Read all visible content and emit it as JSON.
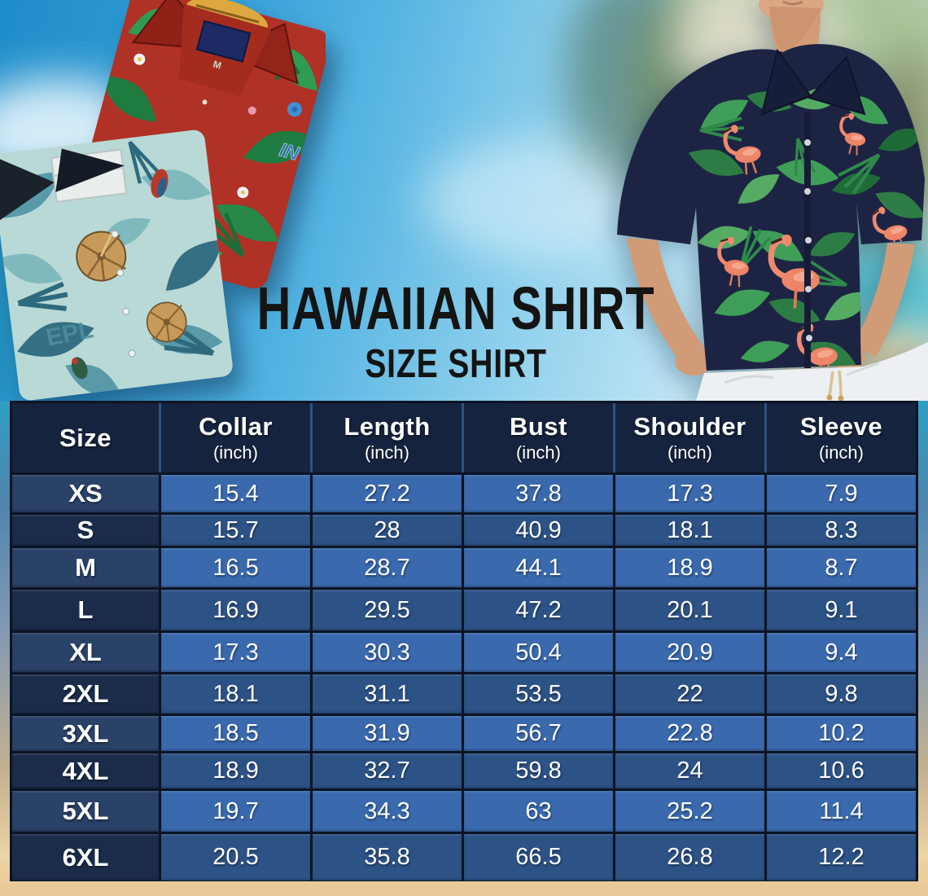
{
  "title": "HAWAIIAN SHIRT",
  "subtitle": "SIZE SHIRT",
  "hero": {
    "left_image": "two-folded-hawaiian-shirts",
    "right_image": "man-wearing-navy-flamingo-hawaiian-shirt",
    "red_shirt_size_tag": "M",
    "red_shirt_logo_text": "IN",
    "teal_shirt_text": "EPL"
  },
  "table": {
    "columns": [
      {
        "label": "Size",
        "sub": ""
      },
      {
        "label": "Collar",
        "sub": "(inch)"
      },
      {
        "label": "Length",
        "sub": "(inch)"
      },
      {
        "label": "Bust",
        "sub": "(inch)"
      },
      {
        "label": "Shoulder",
        "sub": "(inch)"
      },
      {
        "label": "Sleeve",
        "sub": "(inch)"
      }
    ],
    "rows": [
      {
        "size": "XS",
        "values": [
          "15.4",
          "27.2",
          "37.8",
          "17.3",
          "7.9"
        ]
      },
      {
        "size": "S",
        "values": [
          "15.7",
          "28",
          "40.9",
          "18.1",
          "8.3"
        ]
      },
      {
        "size": "M",
        "values": [
          "16.5",
          "28.7",
          "44.1",
          "18.9",
          "8.7"
        ]
      },
      {
        "size": "L",
        "values": [
          "16.9",
          "29.5",
          "47.2",
          "20.1",
          "9.1"
        ]
      },
      {
        "size": "XL",
        "values": [
          "17.3",
          "30.3",
          "50.4",
          "20.9",
          "9.4"
        ]
      },
      {
        "size": "2XL",
        "values": [
          "18.1",
          "31.1",
          "53.5",
          "22",
          "9.8"
        ]
      },
      {
        "size": "3XL",
        "values": [
          "18.5",
          "31.9",
          "56.7",
          "22.8",
          "10.2"
        ]
      },
      {
        "size": "4XL",
        "values": [
          "18.9",
          "32.7",
          "59.8",
          "24",
          "10.6"
        ]
      },
      {
        "size": "5XL",
        "values": [
          "19.7",
          "34.3",
          "63",
          "25.2",
          "11.4"
        ]
      },
      {
        "size": "6XL",
        "values": [
          "20.5",
          "35.8",
          "66.5",
          "26.8",
          "12.2"
        ]
      }
    ]
  },
  "chart_data": {
    "type": "table",
    "title": "Hawaiian Shirt Size Shirt",
    "categories": [
      "XS",
      "S",
      "M",
      "L",
      "XL",
      "2XL",
      "3XL",
      "4XL",
      "5XL",
      "6XL"
    ],
    "series": [
      {
        "name": "Collar (inch)",
        "values": [
          15.4,
          15.7,
          16.5,
          16.9,
          17.3,
          18.1,
          18.5,
          18.9,
          19.7,
          20.5
        ]
      },
      {
        "name": "Length (inch)",
        "values": [
          27.2,
          28,
          28.7,
          29.5,
          30.3,
          31.1,
          31.9,
          32.7,
          34.3,
          35.8
        ]
      },
      {
        "name": "Bust (inch)",
        "values": [
          37.8,
          40.9,
          44.1,
          47.2,
          50.4,
          53.5,
          56.7,
          59.8,
          63,
          66.5
        ]
      },
      {
        "name": "Shoulder (inch)",
        "values": [
          17.3,
          18.1,
          18.9,
          20.1,
          20.9,
          22,
          22.8,
          24,
          25.2,
          26.8
        ]
      },
      {
        "name": "Sleeve (inch)",
        "values": [
          7.9,
          8.3,
          8.7,
          9.1,
          9.4,
          9.8,
          10.2,
          10.6,
          11.4,
          12.2
        ]
      }
    ]
  },
  "colors": {
    "header_bg": "#16233e",
    "row_light_value": "#3a69ae",
    "row_dark_value": "#2d5286",
    "row_light_size": "#2a4168",
    "row_dark_size": "#1b2c4b",
    "grid_line": "#0b1424",
    "header_divider": "#2d5183",
    "sky_blue": "#2f9ad4",
    "sand": "#ecd4a4",
    "title_text": "#141414",
    "table_text": "#ffffff"
  }
}
